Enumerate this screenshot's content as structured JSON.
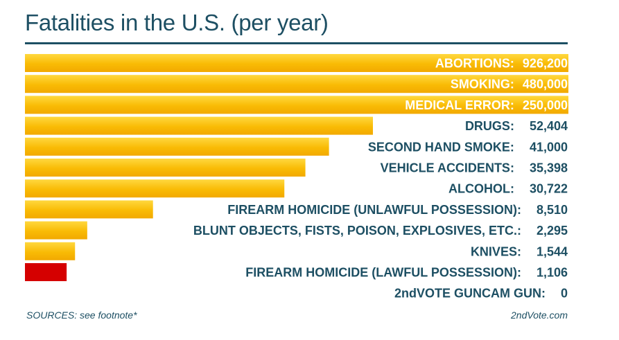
{
  "header": {
    "title": "Fatalities in the U.S. (per year)"
  },
  "footer": {
    "sources": "SOURCES: see footnote*",
    "site": "2ndVote.com"
  },
  "colors": {
    "bar_gold": "#f7b500",
    "bar_gold_light": "#ffd23a",
    "bar_red": "#d50000",
    "text_dark": "#1d4f63",
    "text_light": "#ffffff"
  },
  "chart_data": {
    "type": "bar",
    "orientation": "horizontal",
    "title": "Fatalities in the U.S. (per year)",
    "xlabel": "",
    "ylabel": "",
    "bars": [
      {
        "label": "ABORTIONS:",
        "value": 926200,
        "display": "926,200"
      },
      {
        "label": "SMOKING:",
        "value": 480000,
        "display": "480,000"
      },
      {
        "label": "MEDICAL ERROR:",
        "value": 250000,
        "display": "250,000"
      },
      {
        "label": "DRUGS:",
        "value": 52404,
        "display": "52,404"
      },
      {
        "label": "SECOND HAND SMOKE:",
        "value": 41000,
        "display": "41,000"
      },
      {
        "label": "VEHICLE ACCIDENTS:",
        "value": 35398,
        "display": "35,398"
      },
      {
        "label": "ALCOHOL:",
        "value": 30722,
        "display": "30,722"
      },
      {
        "label": "FIREARM HOMICIDE (UNLAWFUL POSSESSION):",
        "value": 8510,
        "display": "8,510"
      },
      {
        "label": "BLUNT OBJECTS, FISTS, POISON, EXPLOSIVES, ETC.:",
        "value": 2295,
        "display": "2,295"
      },
      {
        "label": "KNIVES:",
        "value": 1544,
        "display": "1,544"
      },
      {
        "label": "FIREARM HOMICIDE (LAWFUL POSSESSION):",
        "value": 1106,
        "display": "1,106"
      },
      {
        "label": "2ndVOTE GUNCAM GUN:",
        "value": 0,
        "display": "0"
      }
    ],
    "note": "Bar lengths are not to a linear scale; the top three bars span the full chart width."
  }
}
